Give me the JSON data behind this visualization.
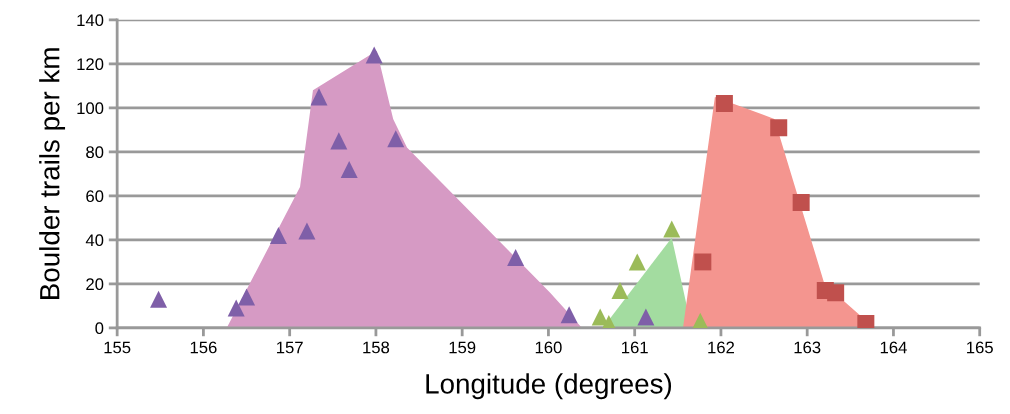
{
  "chart_data": {
    "type": "scatter",
    "xlabel": "Longitude (degrees)",
    "ylabel": "Boulder trails per km",
    "xlim": [
      155,
      165
    ],
    "xticks": [
      155,
      156,
      157,
      158,
      159,
      160,
      161,
      162,
      163,
      164,
      165
    ],
    "ylim": [
      0,
      140
    ],
    "yticks": [
      0,
      20,
      40,
      60,
      80,
      100,
      120,
      140
    ],
    "grid": "y",
    "series": [
      {
        "type": "area",
        "color": "#d69ac4",
        "x": [
          156.27,
          157.12,
          157.27,
          158.01,
          158.2,
          158.36,
          160.02,
          160.39
        ],
        "values": [
          0,
          64,
          108,
          126,
          95,
          82,
          16,
          0
        ]
      },
      {
        "type": "area",
        "color": "#a3dca0",
        "x": [
          160.63,
          161.43,
          161.66
        ],
        "values": [
          0,
          41,
          0
        ]
      },
      {
        "type": "area",
        "color": "#f4958f",
        "x": [
          161.56,
          161.93,
          162.62,
          163.2,
          163.78
        ],
        "values": [
          0,
          105,
          95,
          20,
          0
        ]
      },
      {
        "color": "#7f5fa8",
        "marker": "triangle",
        "x": [
          155.48,
          156.38,
          156.5,
          156.87,
          157.2,
          157.34,
          157.57,
          157.69,
          157.98,
          158.23,
          159.62,
          160.24,
          161.13
        ],
        "values": [
          13,
          9,
          14,
          42,
          44,
          105,
          85,
          72,
          124,
          86,
          32,
          6,
          5
        ]
      },
      {
        "color": "#9bbb59",
        "marker": "triangle",
        "x": [
          160.6,
          160.7,
          160.83,
          161.03,
          161.43,
          161.76
        ],
        "values": [
          5,
          2,
          17,
          30,
          45,
          3
        ]
      },
      {
        "color": "#c0504d",
        "marker": "square",
        "x": [
          161.79,
          162.04,
          162.67,
          162.93,
          163.21,
          163.33,
          163.68
        ],
        "values": [
          30,
          102,
          91,
          57,
          17,
          16,
          2
        ]
      }
    ]
  }
}
